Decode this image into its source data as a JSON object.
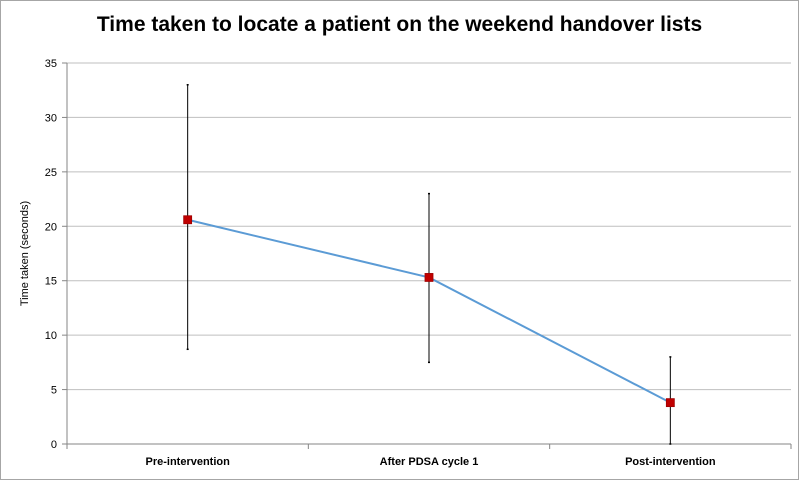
{
  "chart_data": {
    "type": "line",
    "title": "Time taken to locate a patient on the weekend handover lists",
    "xlabel": "",
    "ylabel": "Time taken (seconds)",
    "categories": [
      "Pre-intervention",
      "After PDSA cycle 1",
      "Post-intervention"
    ],
    "series": [
      {
        "values": [
          20.6,
          15.3,
          3.8
        ],
        "error_low": [
          8.7,
          7.5,
          0
        ],
        "error_high": [
          33,
          23,
          8
        ],
        "line_color": "#5b9bd5",
        "marker_color": "#c00000"
      }
    ],
    "ylim": [
      0,
      35
    ],
    "yticks": [
      0,
      5,
      10,
      15,
      20,
      25,
      30,
      35
    ],
    "grid": true,
    "legend": "none"
  }
}
